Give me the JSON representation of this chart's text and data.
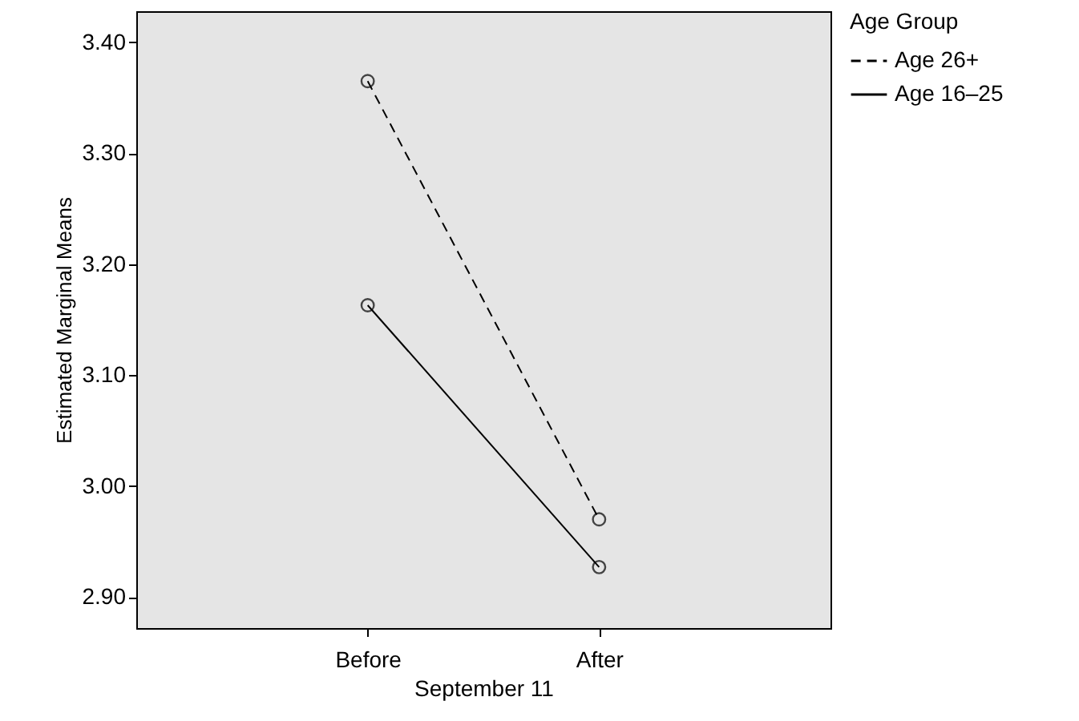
{
  "chart_data": {
    "type": "line",
    "xlabel": "September 11",
    "ylabel": "Estimated Marginal Means",
    "legend_title": "Age Group",
    "categories": [
      "Before",
      "After"
    ],
    "series": [
      {
        "name": "Age 26+",
        "color": "#000000",
        "line_style": "dashed",
        "values": [
          3.365,
          2.97
        ]
      },
      {
        "name": "Age 16–25",
        "color": "#000000",
        "line_style": "solid",
        "values": [
          3.163,
          2.927
        ]
      }
    ],
    "ylim": [
      2.872,
      3.428
    ],
    "yticks": [
      {
        "value": 2.9,
        "label": "2.90"
      },
      {
        "value": 3.0,
        "label": "3.00"
      },
      {
        "value": 3.1,
        "label": "3.10"
      },
      {
        "value": 3.2,
        "label": "3.20"
      },
      {
        "value": 3.3,
        "label": "3.30"
      },
      {
        "value": 3.4,
        "label": "3.40"
      }
    ],
    "marker": "circle",
    "grid": false,
    "legend": "top right"
  }
}
